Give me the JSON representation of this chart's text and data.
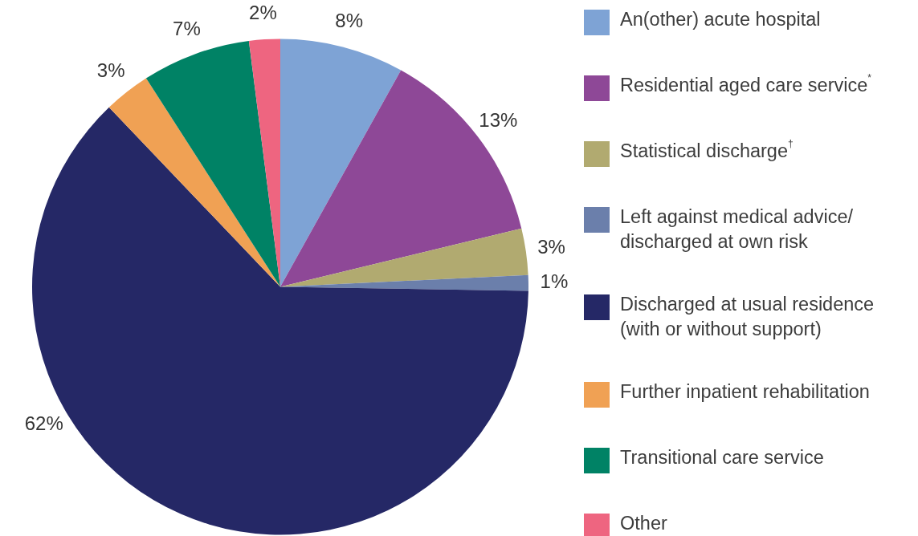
{
  "chart_data": {
    "type": "pie",
    "categories": [
      "An(other) acute hospital",
      "Residential aged care service$^{*}$",
      "Statistical discharge$^{†}$",
      "Left against medical advice/ discharged at own risk",
      "Discharged at usual residence (with or without support)",
      "Further inpatient rehabilitation",
      "Transitional care service",
      "Other"
    ],
    "values": [
      8,
      13,
      3,
      1,
      62,
      3,
      7,
      2
    ],
    "colors": [
      "#7ea3d5",
      "#8e4897",
      "#b1aa70",
      "#6b7fab",
      "#252866",
      "#f0a154",
      "#008265",
      "#ee6580"
    ],
    "value_labels": [
      "8%",
      "13%",
      "3%",
      "1%",
      "62%",
      "3%",
      "7%",
      "2%"
    ],
    "legend": "right"
  }
}
